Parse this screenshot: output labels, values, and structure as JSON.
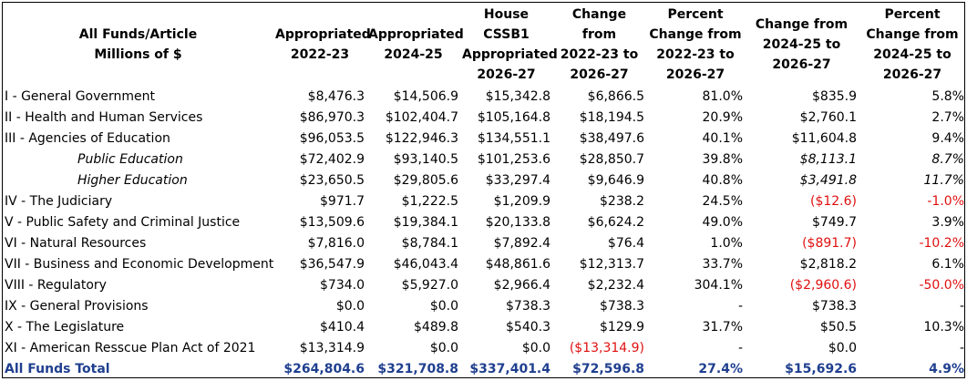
{
  "headers": [
    "All Funds/Article\nMillions of $",
    "Appropriated\n2022-23",
    "Appropriated\n2024-25",
    "House CSSB1\nAppropriated\n2026-27",
    "Change from\n2022-23 to\n2026-27",
    "Percent\nChange from\n2022-23 to\n2026-27",
    "Change from\n2024-25 to\n2026-27",
    "Percent\nChange from\n2024-25 to\n2026-27"
  ],
  "rows": [
    {
      "label": "I - General Government",
      "c1": "$8,476.3",
      "c2": "$14,506.9",
      "c3": "$15,342.8",
      "c4": "$6,866.5",
      "c5": "81.0%",
      "c6": "$835.9",
      "c7": "5.8%"
    },
    {
      "label": "II - Health and Human Services",
      "c1": "$86,970.3",
      "c2": "$102,404.7",
      "c3": "$105,164.8",
      "c4": "$18,194.5",
      "c5": "20.9%",
      "c6": "$2,760.1",
      "c7": "2.7%"
    },
    {
      "label": "III - Agencies of Education",
      "c1": "$96,053.5",
      "c2": "$122,946.3",
      "c3": "$134,551.1",
      "c4": "$38,497.6",
      "c5": "40.1%",
      "c6": "$11,604.8",
      "c7": "9.4%"
    },
    {
      "label": "Public Education",
      "c1": "$72,402.9",
      "c2": "$93,140.5",
      "c3": "$101,253.6",
      "c4": "$28,850.7",
      "c5": "39.8%",
      "c6": "$8,113.1",
      "c7": "8.7%"
    },
    {
      "label": "Higher Education",
      "c1": "$23,650.5",
      "c2": "$29,805.6",
      "c3": "$33,297.4",
      "c4": "$9,646.9",
      "c5": "40.8%",
      "c6": "$3,491.8",
      "c7": "11.7%"
    },
    {
      "label": "IV - The Judiciary",
      "c1": "$971.7",
      "c2": "$1,222.5",
      "c3": "$1,209.9",
      "c4": "$238.2",
      "c5": "24.5%",
      "c6": "($12.6)",
      "c7": "-1.0%"
    },
    {
      "label": "V - Public Safety and Criminal Justice",
      "c1": "$13,509.6",
      "c2": "$19,384.1",
      "c3": "$20,133.8",
      "c4": "$6,624.2",
      "c5": "49.0%",
      "c6": "$749.7",
      "c7": "3.9%"
    },
    {
      "label": "VI - Natural Resources",
      "c1": "$7,816.0",
      "c2": "$8,784.1",
      "c3": "$7,892.4",
      "c4": "$76.4",
      "c5": "1.0%",
      "c6": "($891.7)",
      "c7": "-10.2%"
    },
    {
      "label": "VII - Business and Economic Development",
      "c1": "$36,547.9",
      "c2": "$46,043.4",
      "c3": "$48,861.6",
      "c4": "$12,313.7",
      "c5": "33.7%",
      "c6": "$2,818.2",
      "c7": "6.1%"
    },
    {
      "label": "VIII - Regulatory",
      "c1": "$734.0",
      "c2": "$5,927.0",
      "c3": "$2,966.4",
      "c4": "$2,232.4",
      "c5": "304.1%",
      "c6": "($2,960.6)",
      "c7": "-50.0%"
    },
    {
      "label": "IX - General Provisions",
      "c1": "$0.0",
      "c2": "$0.0",
      "c3": "$738.3",
      "c4": "$738.3",
      "c5": "-",
      "c6": "$738.3",
      "c7": "-"
    },
    {
      "label": "X - The Legislature",
      "c1": "$410.4",
      "c2": "$489.8",
      "c3": "$540.3",
      "c4": "$129.9",
      "c5": "31.7%",
      "c6": "$50.5",
      "c7": "10.3%"
    },
    {
      "label": "XI - American Resscue Plan Act of 2021",
      "c1": "$13,314.9",
      "c2": "$0.0",
      "c3": "$0.0",
      "c4": "($13,314.9)",
      "c5": "-",
      "c6": "$0.0",
      "c7": "-"
    },
    {
      "label": "All Funds Total",
      "c1": "$264,804.6",
      "c2": "$321,708.8",
      "c3": "$337,401.4",
      "c4": "$72,596.8",
      "c5": "27.4%",
      "c6": "$15,692.6",
      "c7": "4.9%"
    }
  ],
  "colors": {
    "negative": "#e01010",
    "total": "#1f3f8f"
  }
}
